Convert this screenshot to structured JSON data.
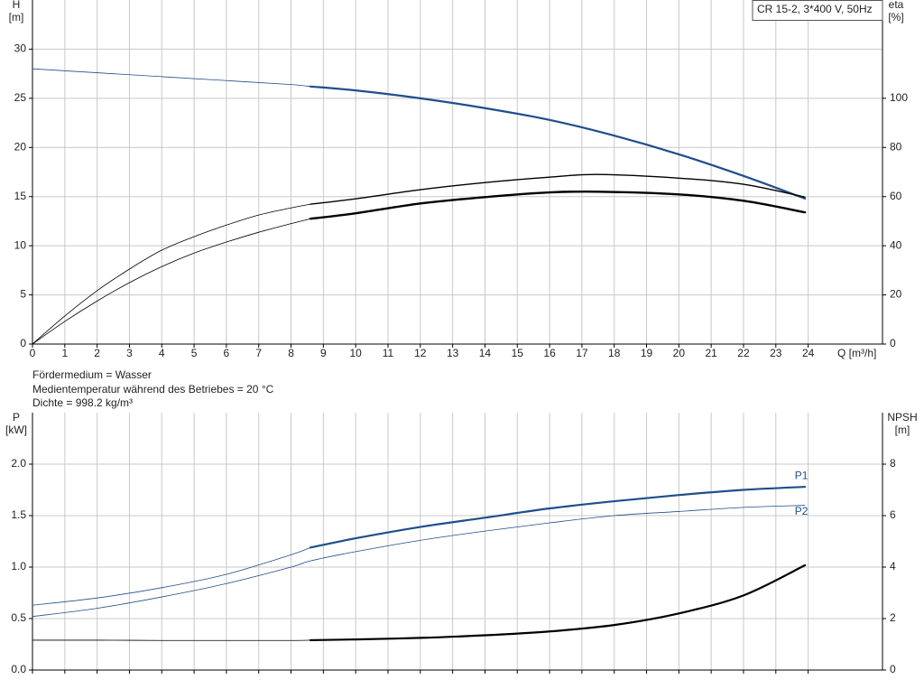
{
  "chart_data": [
    {
      "type": "line",
      "title": "CR 15-2, 3*400 V, 50Hz",
      "xlabel": "Q [m³/h]",
      "ylabel": [
        "H",
        "[m]"
      ],
      "y2label": [
        "eta",
        "[%]"
      ],
      "xlim": [
        0,
        26.3
      ],
      "xticks": [
        0,
        1,
        2,
        3,
        4,
        5,
        6,
        7,
        8,
        9,
        10,
        11,
        12,
        13,
        14,
        15,
        16,
        17,
        18,
        19,
        20,
        21,
        22,
        23,
        24
      ],
      "ylim": [
        0,
        35
      ],
      "yticks": [
        0,
        5,
        10,
        15,
        20,
        25,
        30
      ],
      "y2lim": [
        0,
        140
      ],
      "y2ticks": [
        0,
        20,
        40,
        60,
        80,
        100
      ],
      "grid": true,
      "show_xtick_labels": true,
      "series": [
        {
          "color": "#1f4e8c",
          "width": 0.8,
          "x": [
            0,
            2,
            4,
            6,
            8,
            8.6
          ],
          "values": [
            28,
            27.6,
            27.2,
            26.8,
            26.4,
            26.2
          ]
        },
        {
          "color": "#1f4e8c",
          "width": 2.2,
          "x": [
            8.6,
            10,
            12,
            14,
            16,
            18,
            20,
            22,
            23.9
          ],
          "values": [
            26.2,
            25.8,
            25.0,
            24.0,
            22.8,
            21.2,
            19.3,
            17.1,
            14.8
          ]
        },
        {
          "color": "#000000",
          "width": 0.8,
          "axis": "y2",
          "x": [
            0,
            1,
            2,
            3,
            4,
            5,
            6,
            7,
            8,
            8.6
          ],
          "values": [
            0,
            11.4,
            21.7,
            30.5,
            38.2,
            43.7,
            48.4,
            52.5,
            55.4,
            56.9
          ]
        },
        {
          "color": "#000000",
          "width": 1.4,
          "axis": "y2",
          "x": [
            8.6,
            10,
            12,
            14,
            16,
            17.5,
            20,
            22,
            23.9
          ],
          "values": [
            56.9,
            59.1,
            62.8,
            65.7,
            67.9,
            69,
            67.5,
            65,
            59.8
          ]
        },
        {
          "color": "#000000",
          "width": 0.8,
          "axis": "y2",
          "x": [
            0,
            1,
            2,
            3,
            4,
            5,
            6,
            7,
            8,
            8.6
          ],
          "values": [
            0,
            9.2,
            17.5,
            25,
            31.5,
            37,
            41.5,
            45.5,
            49,
            51
          ]
        },
        {
          "color": "#000000",
          "width": 2.4,
          "axis": "y2",
          "x": [
            8.6,
            10,
            12,
            14,
            16,
            17.5,
            20,
            22,
            23.9
          ],
          "values": [
            51,
            53.2,
            57.2,
            59.8,
            61.7,
            62,
            60.9,
            58.3,
            53.6
          ]
        }
      ]
    },
    {
      "type": "line",
      "ylabel": [
        "P",
        "[kW]"
      ],
      "y2label": [
        "NPSH",
        "[m]"
      ],
      "xlim": [
        0,
        26.3
      ],
      "xticks": [
        0,
        1,
        2,
        3,
        4,
        5,
        6,
        7,
        8,
        9,
        10,
        11,
        12,
        13,
        14,
        15,
        16,
        17,
        18,
        19,
        20,
        21,
        22,
        23,
        24
      ],
      "ylim": [
        0,
        2.5
      ],
      "yticks": [
        {
          "value": 0,
          "label": "0.0"
        },
        0.5,
        {
          "value": 1,
          "label": "1.0"
        },
        1.5,
        {
          "value": 2,
          "label": "2.0"
        }
      ],
      "y2lim": [
        0,
        10
      ],
      "y2ticks": [
        0,
        2,
        4,
        6,
        8
      ],
      "grid": true,
      "show_xtick_labels": false,
      "series": [
        {
          "color": "#1f4e8c",
          "width": 0.8,
          "x": [
            0,
            2,
            4,
            6,
            8,
            8.6
          ],
          "values": [
            0.63,
            0.7,
            0.8,
            0.93,
            1.12,
            1.19
          ]
        },
        {
          "name": "P1",
          "color": "#1f4e8c",
          "width": 2.2,
          "x": [
            8.6,
            10,
            12,
            14,
            16,
            18,
            20,
            22,
            23.9
          ],
          "values": [
            1.19,
            1.28,
            1.39,
            1.48,
            1.57,
            1.64,
            1.7,
            1.75,
            1.78
          ]
        },
        {
          "name": "P2",
          "color": "#1f4e8c",
          "width": 0.8,
          "x": [
            0,
            2,
            4,
            6,
            8,
            8.6,
            10,
            12,
            14,
            16,
            18,
            20,
            22,
            23.9
          ],
          "values": [
            0.52,
            0.6,
            0.71,
            0.84,
            1.0,
            1.06,
            1.15,
            1.26,
            1.35,
            1.43,
            1.5,
            1.54,
            1.58,
            1.6
          ]
        },
        {
          "color": "#000000",
          "width": 0.8,
          "axis": "y2",
          "x": [
            0,
            2,
            4,
            6,
            8,
            8.6
          ],
          "values": [
            1.16,
            1.16,
            1.15,
            1.15,
            1.15,
            1.16
          ]
        },
        {
          "color": "#000000",
          "width": 2.2,
          "axis": "y2",
          "x": [
            8.6,
            10,
            12,
            14,
            16,
            18,
            20,
            22,
            23.9
          ],
          "values": [
            1.16,
            1.19,
            1.25,
            1.35,
            1.5,
            1.75,
            2.2,
            2.9,
            4.07
          ]
        }
      ]
    }
  ],
  "info": [
    "Fördermedium = Wasser",
    "Medientemperatur während des Betriebes = 20 °C",
    "Dichte = 998.2 kg/m³"
  ]
}
